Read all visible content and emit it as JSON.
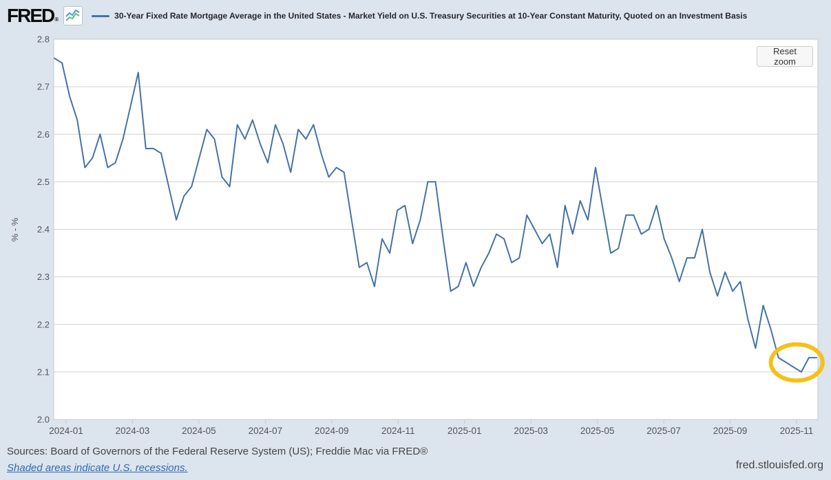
{
  "header": {
    "logo": "FRED",
    "logo_registered": "®",
    "series_title": "30-Year Fixed Rate Mortgage Average in the United States - Market Yield on U.S. Treasury Securities at 10-Year Constant Maturity, Quoted on an Investment Basis"
  },
  "toolbar": {
    "reset_zoom_label": "Reset zoom"
  },
  "footer": {
    "sources": "Sources: Board of Governors of the Federal Reserve System (US); Freddie Mac via FRED®",
    "recession_note": "Shaded areas indicate U.S. recessions.",
    "watermark": "fred.stlouisfed.org"
  },
  "colors": {
    "page_background": "#dce4ee",
    "plot_background": "#ffffff",
    "gridline": "#d0d0d0",
    "axis_border": "#c9c9c9",
    "tick_text": "#555555",
    "series_line": "#4572a7",
    "annotation": "#f3c118"
  },
  "chart_data": {
    "type": "line",
    "title": "30-Year Fixed Rate Mortgage Average in the United States - Market Yield on U.S. Treasury Securities at 10-Year Constant Maturity, Quoted on an Investment Basis",
    "xlabel": "",
    "ylabel": "% - %",
    "ylim": [
      2.0,
      2.8
    ],
    "yticks": [
      2.8,
      2.7,
      2.6,
      2.5,
      2.4,
      2.3,
      2.2,
      2.1,
      2.0
    ],
    "ytick_labels": [
      "2.8",
      "2.7",
      "2.6",
      "2.5",
      "2.4",
      "2.3",
      "2.2",
      "2.1",
      "2.0"
    ],
    "xtick_labels": [
      "2024-01",
      "2024-03",
      "2024-05",
      "2024-07",
      "2024-09",
      "2024-11",
      "2025-01",
      "2025-03",
      "2025-05",
      "2025-07",
      "2025-09",
      "2025-11"
    ],
    "x_unit": "weekly, 2024-01 through 2025-11",
    "grid": "horizontal only",
    "legend_position": "top",
    "line_color": "#4572a7",
    "values": [
      2.76,
      2.75,
      2.68,
      2.63,
      2.53,
      2.55,
      2.6,
      2.53,
      2.54,
      2.59,
      2.66,
      2.73,
      2.57,
      2.57,
      2.56,
      2.49,
      2.42,
      2.47,
      2.49,
      2.55,
      2.61,
      2.59,
      2.51,
      2.49,
      2.62,
      2.59,
      2.63,
      2.58,
      2.54,
      2.62,
      2.58,
      2.52,
      2.61,
      2.59,
      2.62,
      2.56,
      2.51,
      2.53,
      2.52,
      2.42,
      2.32,
      2.33,
      2.28,
      2.38,
      2.35,
      2.44,
      2.45,
      2.37,
      2.42,
      2.5,
      2.5,
      2.38,
      2.27,
      2.28,
      2.33,
      2.28,
      2.32,
      2.35,
      2.39,
      2.38,
      2.33,
      2.34,
      2.43,
      2.4,
      2.37,
      2.39,
      2.32,
      2.45,
      2.39,
      2.46,
      2.42,
      2.53,
      2.44,
      2.35,
      2.36,
      2.43,
      2.43,
      2.39,
      2.4,
      2.45,
      2.38,
      2.34,
      2.29,
      2.34,
      2.34,
      2.4,
      2.31,
      2.26,
      2.31,
      2.27,
      2.29,
      2.21,
      2.15,
      2.24,
      2.19,
      2.13,
      2.12,
      2.11,
      2.1,
      2.13,
      2.13
    ],
    "annotation": {
      "shape": "ellipse",
      "meaning": "highlight of the recent low at the end of the series",
      "color": "#f3c118",
      "center_index": 97.4,
      "center_value": 2.12,
      "rx_weeks": 3.4,
      "ry_value": 0.038
    }
  }
}
